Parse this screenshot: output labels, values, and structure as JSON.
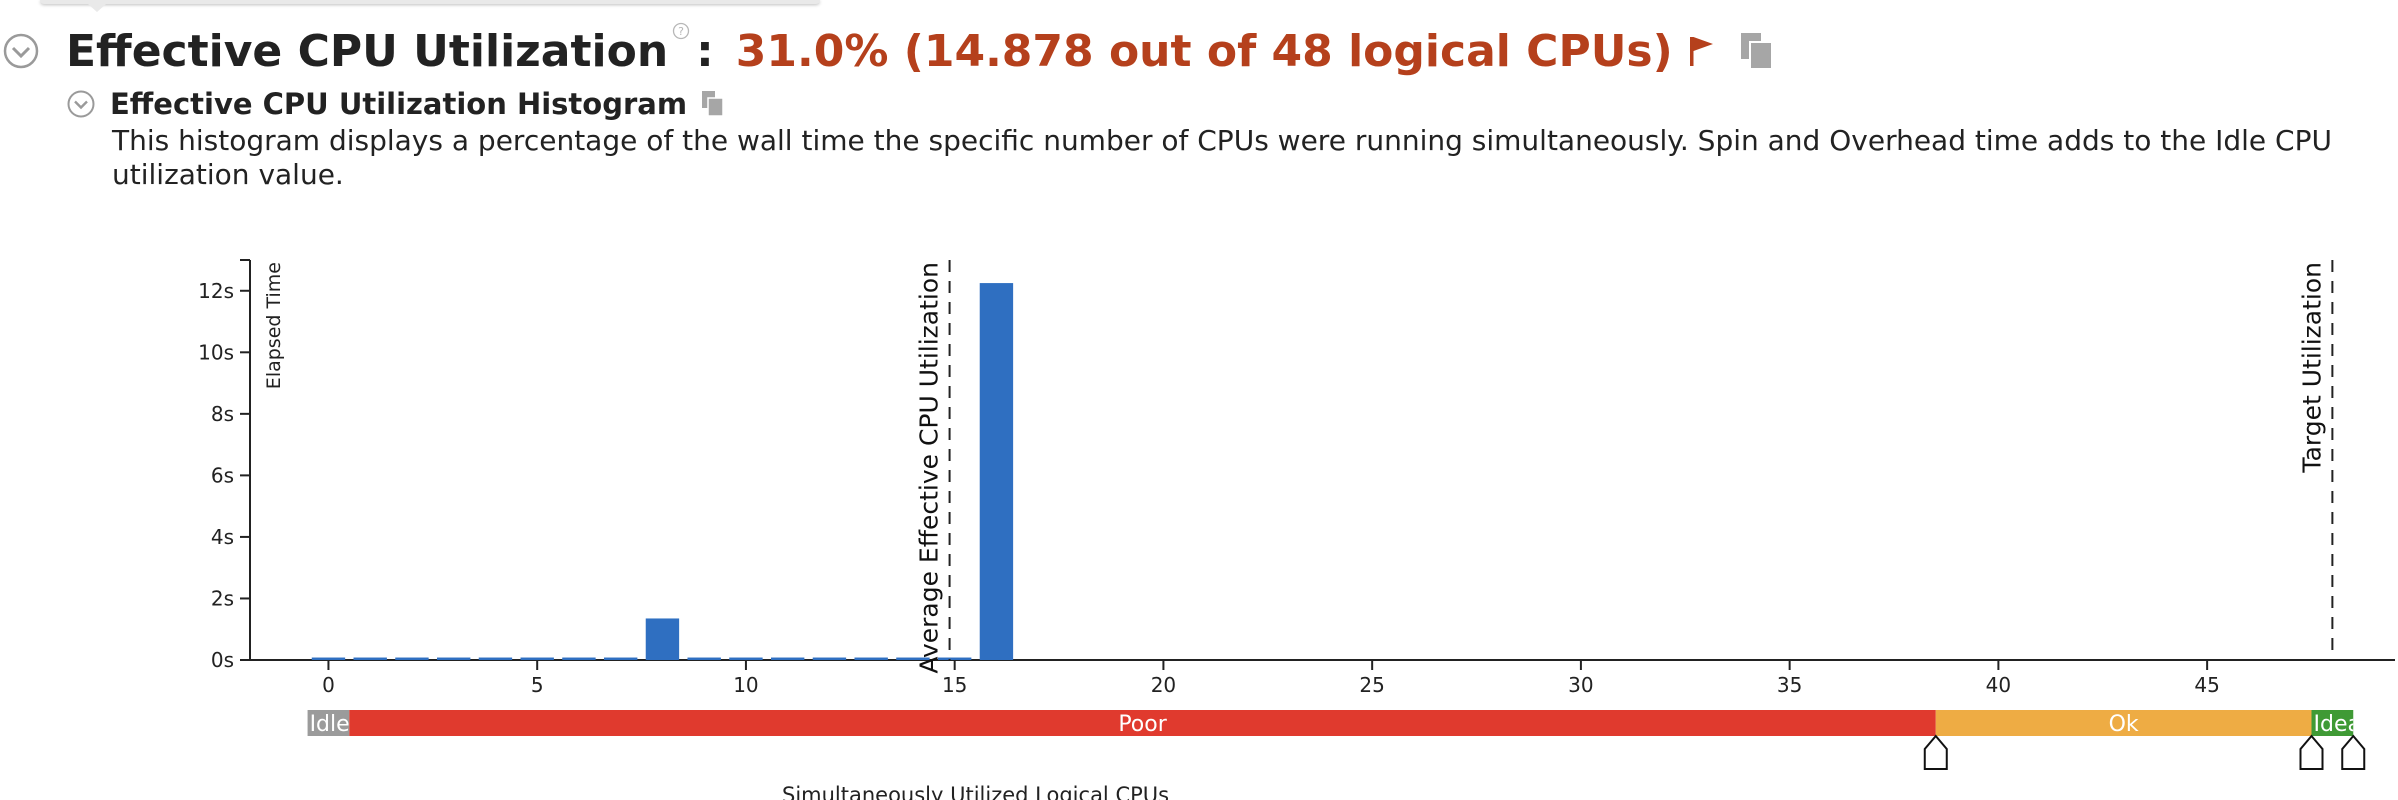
{
  "header": {
    "title": "Effective CPU Utilization",
    "help_glyph": "?",
    "colon": ":",
    "value": "31.0% (14.878 out of 48 logical CPUs)",
    "title_color": "#222222",
    "value_color": "#b5401c",
    "icons": [
      "collapse-icon",
      "help-icon",
      "flag-icon",
      "copy-icon"
    ]
  },
  "section": {
    "title": "Effective CPU Utilization Histogram",
    "description": "This histogram displays a percentage of the wall time the specific number of CPUs were running simultaneously. Spin and Overhead time adds to the Idle CPU utilization value.",
    "icons": [
      "collapse-icon",
      "copy-icon"
    ]
  },
  "chart_data": {
    "type": "bar",
    "ylabel": "Elapsed Time",
    "xlabel": "Simultaneously Utilized Logical CPUs",
    "x": [
      0,
      1,
      2,
      3,
      4,
      5,
      6,
      7,
      8,
      9,
      10,
      11,
      12,
      13,
      14,
      15,
      16
    ],
    "values": [
      0.08,
      0.08,
      0.08,
      0.08,
      0.08,
      0.08,
      0.08,
      0.08,
      1.35,
      0.08,
      0.08,
      0.08,
      0.08,
      0.08,
      0.08,
      0.08,
      12.25
    ],
    "xlim": [
      -1.4,
      49.5
    ],
    "ylim": [
      0,
      13
    ],
    "x_ticks": [
      0,
      5,
      10,
      15,
      20,
      25,
      30,
      35,
      40,
      45
    ],
    "y_ticks": [
      {
        "value": 0,
        "label": "0s"
      },
      {
        "value": 2,
        "label": "2s"
      },
      {
        "value": 4,
        "label": "4s"
      },
      {
        "value": 6,
        "label": "6s"
      },
      {
        "value": 8,
        "label": "8s"
      },
      {
        "value": 10,
        "label": "10s"
      },
      {
        "value": 12,
        "label": "12s"
      }
    ],
    "bar_color": "#2f6fc1",
    "reference_lines": [
      {
        "x": 14.878,
        "label": "Average Effective CPU Utilization"
      },
      {
        "x": 48,
        "label": "Target Utilization"
      }
    ],
    "utilization_bands": [
      {
        "label": "Idle",
        "from": -0.5,
        "to": 0.5,
        "color": "#9b9b9b"
      },
      {
        "label": "Poor",
        "from": 0.5,
        "to": 38.5,
        "color": "#e03a2e"
      },
      {
        "label": "Ok",
        "from": 38.5,
        "to": 47.5,
        "color": "#eeac44"
      },
      {
        "label": "Ideal",
        "from": 47.5,
        "to": 48.5,
        "color": "#3f9a35"
      }
    ],
    "band_markers": [
      38.5,
      47.5,
      48.5
    ],
    "grid": false,
    "legend": "none"
  }
}
